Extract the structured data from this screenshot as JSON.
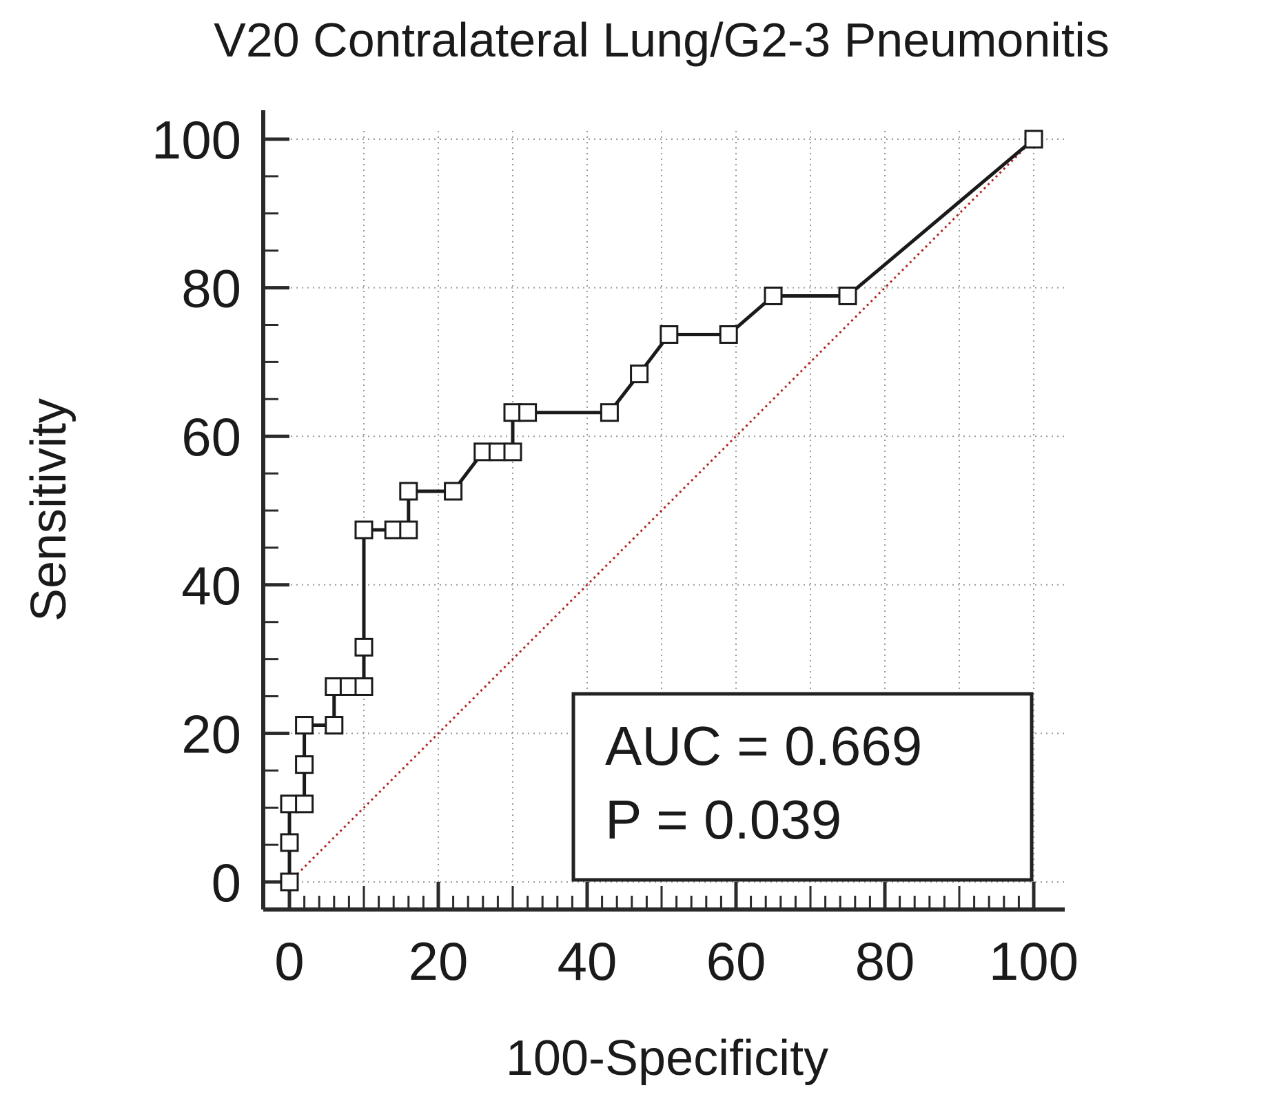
{
  "chart_data": {
    "type": "line",
    "title": "V20 Contralateral Lung/G2-3 Pneumonitis",
    "xlabel": "100-Specificity",
    "ylabel": "Sensitivity",
    "xlim": [
      0,
      100
    ],
    "ylim": [
      0,
      100
    ],
    "x_ticks": [
      0,
      20,
      40,
      60,
      80,
      100
    ],
    "y_ticks": [
      0,
      20,
      40,
      60,
      80,
      100
    ],
    "x_tick_labels": [
      "0",
      "20",
      "40",
      "60",
      "80",
      "100"
    ],
    "y_tick_labels": [
      "0",
      "20",
      "40",
      "60",
      "80",
      "100"
    ],
    "grid": true,
    "series": [
      {
        "marker": "open-square",
        "color": "#1a1a1a",
        "points": [
          {
            "x": 0,
            "y": 0
          },
          {
            "x": 0,
            "y": 5.3
          },
          {
            "x": 0,
            "y": 10.5
          },
          {
            "x": 2,
            "y": 10.5
          },
          {
            "x": 2,
            "y": 15.8
          },
          {
            "x": 2,
            "y": 21.1
          },
          {
            "x": 6,
            "y": 21.1
          },
          {
            "x": 6,
            "y": 26.3
          },
          {
            "x": 8,
            "y": 26.3
          },
          {
            "x": 10,
            "y": 26.3
          },
          {
            "x": 10,
            "y": 31.6
          },
          {
            "x": 10,
            "y": 47.4
          },
          {
            "x": 14,
            "y": 47.4
          },
          {
            "x": 16,
            "y": 47.4
          },
          {
            "x": 16,
            "y": 52.6
          },
          {
            "x": 22,
            "y": 52.6
          },
          {
            "x": 26,
            "y": 57.9
          },
          {
            "x": 28,
            "y": 57.9
          },
          {
            "x": 30,
            "y": 57.9
          },
          {
            "x": 30,
            "y": 63.2
          },
          {
            "x": 32,
            "y": 63.2
          },
          {
            "x": 43,
            "y": 63.2
          },
          {
            "x": 47,
            "y": 68.4
          },
          {
            "x": 51,
            "y": 73.7
          },
          {
            "x": 59,
            "y": 73.7
          },
          {
            "x": 65,
            "y": 78.9
          },
          {
            "x": 75,
            "y": 78.9
          },
          {
            "x": 100,
            "y": 100
          }
        ]
      }
    ],
    "reference_line": {
      "from": [
        0,
        0
      ],
      "to": [
        100,
        100
      ],
      "style": "dotted",
      "color": "#b22222"
    },
    "annotation": {
      "auc_text": "AUC = 0.669",
      "p_text": "P = 0.039",
      "position": "bottom-right"
    }
  }
}
